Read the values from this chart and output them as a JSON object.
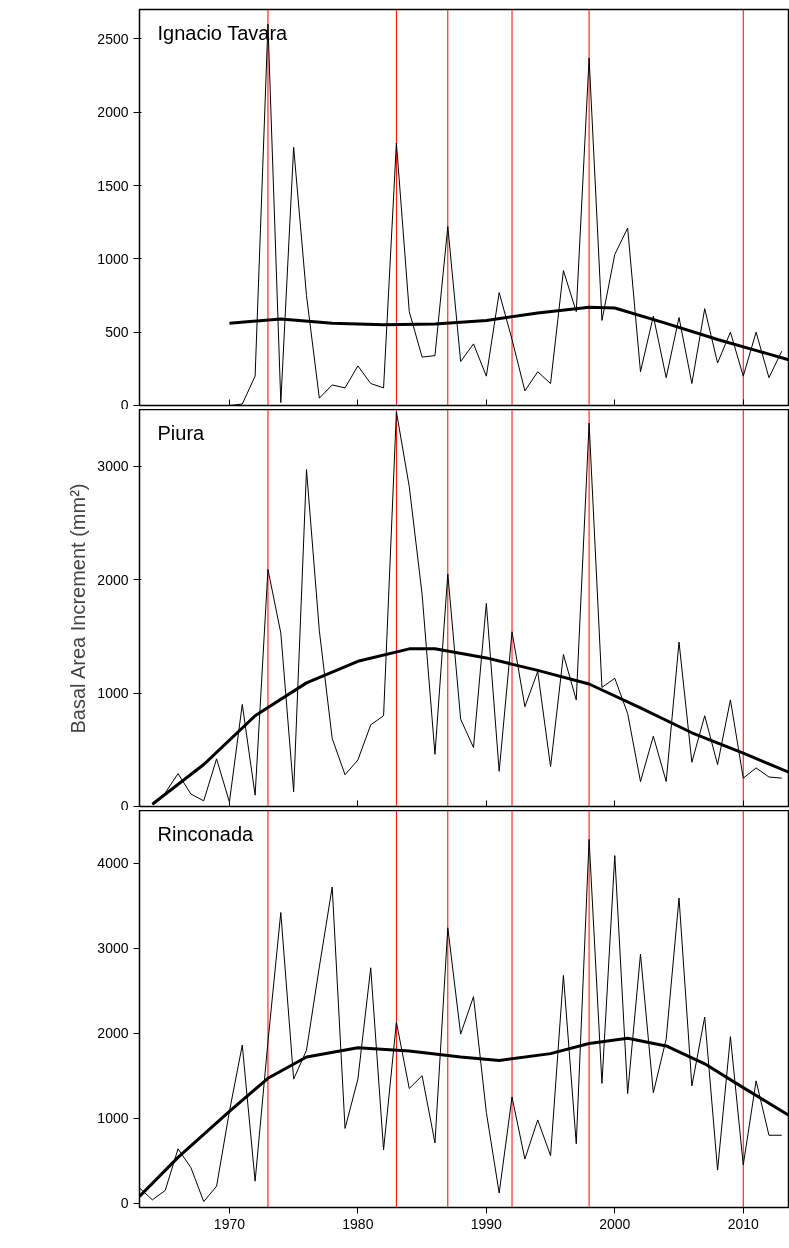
{
  "chart_data": [
    {
      "type": "line",
      "title": "Ignacio Tavara",
      "xlim": [
        1963,
        2013.6
      ],
      "ylim": [
        0,
        2700
      ],
      "yticks": [
        0,
        500,
        1000,
        1500,
        2000,
        2500
      ],
      "tick_labels": "y",
      "grid": false,
      "series": [
        {
          "color": "#000000",
          "x": [
            1970,
            1971,
            1972,
            1973,
            1974,
            1975,
            1976,
            1977,
            1978,
            1979,
            1980,
            1981,
            1982,
            1983,
            1984,
            1985,
            1986,
            1987,
            1988,
            1989,
            1990,
            1991,
            1992,
            1993,
            1994,
            1995,
            1996,
            1997,
            1998,
            1999,
            2000,
            2001,
            2002,
            2003,
            2004,
            2005,
            2006,
            2007,
            2008,
            2009,
            2010,
            2011,
            2012,
            2013
          ],
          "values": [
            0,
            10,
            200,
            2600,
            20,
            1760,
            750,
            50,
            140,
            120,
            270,
            150,
            120,
            1790,
            640,
            330,
            340,
            1220,
            300,
            420,
            200,
            770,
            450,
            100,
            230,
            150,
            920,
            640,
            2370,
            580,
            1030,
            1210,
            230,
            610,
            190,
            600,
            150,
            660,
            290,
            500,
            200,
            500,
            190,
            370
          ]
        },
        {
          "color": "#000000",
          "type": "line",
          "x": [
            1970,
            1974,
            1978,
            1982,
            1986,
            1990,
            1994,
            1998,
            2000,
            2004,
            2008,
            2012,
            2013.6
          ],
          "values": [
            560,
            590,
            560,
            550,
            555,
            580,
            630,
            670,
            665,
            560,
            450,
            350,
            310
          ]
        }
      ],
      "ref_lines": [
        {
          "axis": "x",
          "value": 1973,
          "color": "#ff0000"
        },
        {
          "axis": "x",
          "value": 1983,
          "color": "#ff0000"
        },
        {
          "axis": "x",
          "value": 1987,
          "color": "#ff0000"
        },
        {
          "axis": "x",
          "value": 1992,
          "color": "#ff0000"
        },
        {
          "axis": "x",
          "value": 1998,
          "color": "#ff0000"
        },
        {
          "axis": "x",
          "value": 2010,
          "color": "#ff0000"
        }
      ]
    },
    {
      "type": "line",
      "title": "Piura",
      "ylabel": "Basal Area Increment (mm²)",
      "xlim": [
        1963,
        2013.6
      ],
      "ylim": [
        0,
        3500
      ],
      "yticks": [
        0,
        1000,
        2000,
        3000
      ],
      "tick_labels": "y",
      "grid": false,
      "series": [
        {
          "color": "#000000",
          "x": [
            1964,
            1965,
            1966,
            1967,
            1968,
            1969,
            1970,
            1971,
            1972,
            1973,
            1974,
            1975,
            1976,
            1977,
            1978,
            1979,
            1980,
            1981,
            1982,
            1983,
            1984,
            1985,
            1986,
            1987,
            1988,
            1989,
            1990,
            1991,
            1992,
            1993,
            1994,
            1995,
            1996,
            1997,
            1998,
            1999,
            2000,
            2001,
            2002,
            2003,
            2004,
            2005,
            2006,
            2007,
            2008,
            2009,
            2010,
            2011,
            2012,
            2013
          ],
          "values": [
            20,
            120,
            290,
            110,
            50,
            420,
            40,
            900,
            100,
            2090,
            1530,
            130,
            2970,
            1550,
            600,
            280,
            410,
            720,
            800,
            3480,
            2820,
            1870,
            460,
            2050,
            770,
            520,
            1790,
            310,
            1540,
            880,
            1190,
            350,
            1340,
            940,
            3380,
            1050,
            1130,
            820,
            220,
            620,
            220,
            1450,
            390,
            800,
            370,
            940,
            250,
            340,
            260,
            250
          ]
        },
        {
          "color": "#000000",
          "type": "line",
          "x": [
            1964,
            1968,
            1972,
            1976,
            1980,
            1984,
            1986,
            1990,
            1994,
            1998,
            2002,
            2006,
            2010,
            2013.6
          ],
          "values": [
            20,
            370,
            800,
            1090,
            1280,
            1390,
            1390,
            1310,
            1200,
            1080,
            870,
            650,
            470,
            300
          ]
        }
      ],
      "ref_lines": [
        {
          "axis": "x",
          "value": 1973,
          "color": "#ff0000"
        },
        {
          "axis": "x",
          "value": 1983,
          "color": "#ff0000"
        },
        {
          "axis": "x",
          "value": 1987,
          "color": "#ff0000"
        },
        {
          "axis": "x",
          "value": 1992,
          "color": "#ff0000"
        },
        {
          "axis": "x",
          "value": 1998,
          "color": "#ff0000"
        },
        {
          "axis": "x",
          "value": 2010,
          "color": "#ff0000"
        }
      ]
    },
    {
      "type": "line",
      "title": "Rinconada",
      "xlim": [
        1963,
        2013.6
      ],
      "ylim": [
        -50,
        4620
      ],
      "xticks": [
        1970,
        1980,
        1990,
        2000,
        2010
      ],
      "yticks": [
        0,
        1000,
        2000,
        3000,
        4000
      ],
      "grid": false,
      "series": [
        {
          "color": "#000000",
          "x": [
            1963,
            1964,
            1965,
            1966,
            1967,
            1968,
            1969,
            1970,
            1971,
            1972,
            1973,
            1974,
            1975,
            1976,
            1977,
            1978,
            1979,
            1980,
            1981,
            1982,
            1983,
            1984,
            1985,
            1986,
            1987,
            1988,
            1989,
            1990,
            1991,
            1992,
            1993,
            1994,
            1995,
            1996,
            1997,
            1998,
            1999,
            2000,
            2001,
            2002,
            2003,
            2004,
            2005,
            2006,
            2007,
            2008,
            2009,
            2010,
            2011,
            2012,
            2013
          ],
          "values": [
            180,
            40,
            150,
            640,
            420,
            20,
            200,
            1080,
            1860,
            260,
            1900,
            3420,
            1460,
            1800,
            2780,
            3720,
            880,
            1460,
            2770,
            630,
            2130,
            1350,
            1500,
            710,
            3240,
            1990,
            2430,
            1070,
            120,
            1250,
            520,
            980,
            560,
            2680,
            700,
            4280,
            1410,
            4090,
            1290,
            2930,
            1300,
            1930,
            3590,
            1380,
            2190,
            390,
            1960,
            450,
            1440,
            800,
            800
          ]
        },
        {
          "color": "#000000",
          "type": "line",
          "x": [
            1963,
            1966,
            1970,
            1973,
            1976,
            1980,
            1984,
            1988,
            1991,
            1995,
            1998,
            2001,
            2004,
            2007,
            2010,
            2013.6
          ],
          "values": [
            80,
            540,
            1080,
            1470,
            1720,
            1830,
            1790,
            1720,
            1680,
            1760,
            1880,
            1940,
            1850,
            1640,
            1360,
            1030
          ]
        }
      ],
      "ref_lines": [
        {
          "axis": "x",
          "value": 1973,
          "color": "#ff0000"
        },
        {
          "axis": "x",
          "value": 1983,
          "color": "#ff0000"
        },
        {
          "axis": "x",
          "value": 1987,
          "color": "#ff0000"
        },
        {
          "axis": "x",
          "value": 1992,
          "color": "#ff0000"
        },
        {
          "axis": "x",
          "value": 1998,
          "color": "#ff0000"
        },
        {
          "axis": "x",
          "value": 2010,
          "color": "#ff0000"
        }
      ]
    }
  ]
}
